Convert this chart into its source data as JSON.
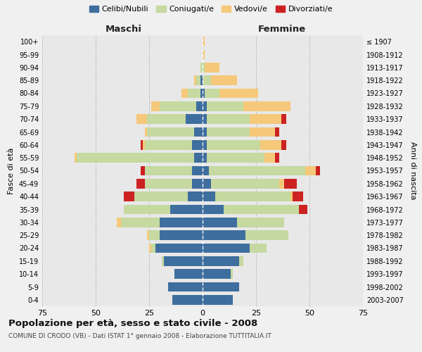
{
  "age_groups": [
    "0-4",
    "5-9",
    "10-14",
    "15-19",
    "20-24",
    "25-29",
    "30-34",
    "35-39",
    "40-44",
    "45-49",
    "50-54",
    "55-59",
    "60-64",
    "65-69",
    "70-74",
    "75-79",
    "80-84",
    "85-89",
    "90-94",
    "95-99",
    "100+"
  ],
  "birth_years": [
    "2003-2007",
    "1998-2002",
    "1993-1997",
    "1988-1992",
    "1983-1987",
    "1978-1982",
    "1973-1977",
    "1968-1972",
    "1963-1967",
    "1958-1962",
    "1953-1957",
    "1948-1952",
    "1943-1947",
    "1938-1942",
    "1933-1937",
    "1928-1932",
    "1923-1927",
    "1918-1922",
    "1913-1917",
    "1908-1912",
    "≤ 1907"
  ],
  "maschi": {
    "celibi": [
      14,
      16,
      13,
      18,
      22,
      20,
      20,
      15,
      7,
      5,
      5,
      4,
      5,
      4,
      8,
      3,
      1,
      1,
      0,
      0,
      0
    ],
    "coniugati": [
      0,
      0,
      0,
      1,
      2,
      5,
      18,
      22,
      25,
      22,
      22,
      55,
      22,
      22,
      18,
      17,
      6,
      2,
      1,
      0,
      0
    ],
    "vedovi": [
      0,
      0,
      0,
      0,
      1,
      1,
      2,
      0,
      0,
      0,
      0,
      1,
      1,
      1,
      5,
      4,
      3,
      1,
      0,
      0,
      0
    ],
    "divorziati": [
      0,
      0,
      0,
      0,
      0,
      0,
      0,
      0,
      5,
      4,
      2,
      0,
      1,
      0,
      0,
      0,
      0,
      0,
      0,
      0,
      0
    ]
  },
  "femmine": {
    "nubili": [
      14,
      17,
      13,
      17,
      22,
      20,
      16,
      10,
      6,
      4,
      3,
      2,
      2,
      2,
      2,
      2,
      1,
      0,
      0,
      0,
      0
    ],
    "coniugate": [
      0,
      0,
      1,
      2,
      8,
      20,
      22,
      35,
      35,
      32,
      45,
      27,
      25,
      20,
      20,
      17,
      7,
      4,
      1,
      0,
      0
    ],
    "vedove": [
      0,
      0,
      0,
      0,
      0,
      0,
      0,
      0,
      1,
      2,
      5,
      5,
      10,
      12,
      15,
      22,
      18,
      12,
      7,
      1,
      1
    ],
    "divorziate": [
      0,
      0,
      0,
      0,
      0,
      0,
      0,
      4,
      5,
      6,
      2,
      2,
      2,
      2,
      2,
      0,
      0,
      0,
      0,
      0,
      0
    ]
  },
  "colors": {
    "celibi": "#3E6E9E",
    "coniugati": "#C5D9A0",
    "vedovi": "#F5C87A",
    "divorziati": "#CC2222"
  },
  "title": "Popolazione per età, sesso e stato civile - 2008",
  "subtitle": "COMUNE DI CRODO (VB) - Dati ISTAT 1° gennaio 2008 - Elaborazione TUTTITALIA.IT",
  "xlim": 75,
  "background_color": "#f0f0f0",
  "plot_bg": "#e8e8e8",
  "grid_color": "#bbbbbb"
}
